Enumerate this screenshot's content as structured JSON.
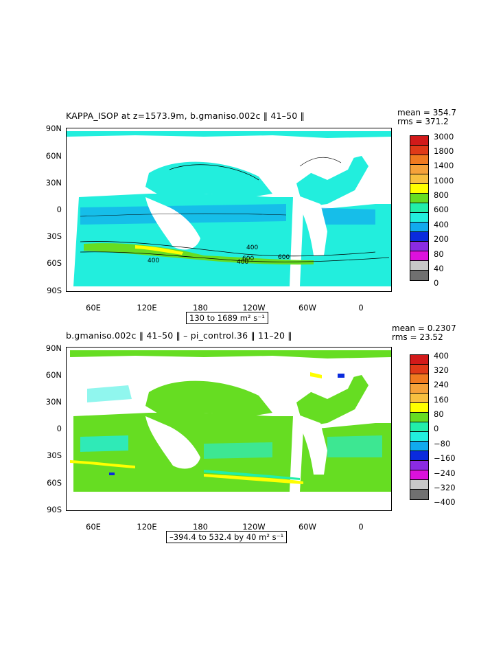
{
  "panels": [
    {
      "title": "KAPPA_ISOP at z=1573.9m, b.gmaniso.002c ‖ 41–50 ‖",
      "mean": "mean = 354.7",
      "rms": "rms = 371.2",
      "range": "130 to 1689 m² s⁻¹",
      "lat_labels": [
        "90N",
        "60N",
        "30N",
        "0",
        "30S",
        "60S",
        "90S"
      ],
      "lon_labels": [
        "60E",
        "120E",
        "180",
        "120W",
        "60W",
        "0"
      ],
      "contour_labels": [
        "400",
        "400",
        "400",
        "600",
        "600"
      ],
      "colorbar": {
        "labels": [
          "3000",
          "1800",
          "1400",
          "1000",
          "800",
          "600",
          "400",
          "200",
          "80",
          "40",
          "0"
        ],
        "colors": [
          "#d21a1a",
          "#e03a18",
          "#f07a20",
          "#f6a23a",
          "#f8c040",
          "#ffff00",
          "#66dd22",
          "#22eeaa",
          "#22eedd",
          "#11aaee",
          "#0a2bdd",
          "#8a2be2",
          "#dd11dd",
          "#c8c8c8",
          "#707070"
        ]
      }
    },
    {
      "title": "b.gmaniso.002c ‖ 41–50 ‖ – pi_control.36 ‖ 11–20 ‖",
      "mean": "mean = 0.2307",
      "rms": "rms = 23.52",
      "range": "–394.4 to 532.4 by 40 m² s⁻¹",
      "lat_labels": [
        "90N",
        "60N",
        "30N",
        "0",
        "30S",
        "60S",
        "90S"
      ],
      "lon_labels": [
        "60E",
        "120E",
        "180",
        "120W",
        "60W",
        "0"
      ],
      "colorbar": {
        "labels": [
          "400",
          "320",
          "240",
          "160",
          "80",
          "0",
          "−80",
          "−160",
          "−240",
          "−320",
          "−400"
        ],
        "colors": [
          "#d21a1a",
          "#e03a18",
          "#f07a20",
          "#f6a23a",
          "#f8c040",
          "#ffff00",
          "#66dd22",
          "#22eeaa",
          "#22eedd",
          "#11aaee",
          "#0a2bdd",
          "#8a2be2",
          "#dd11dd",
          "#c8c8c8",
          "#707070"
        ]
      }
    }
  ]
}
